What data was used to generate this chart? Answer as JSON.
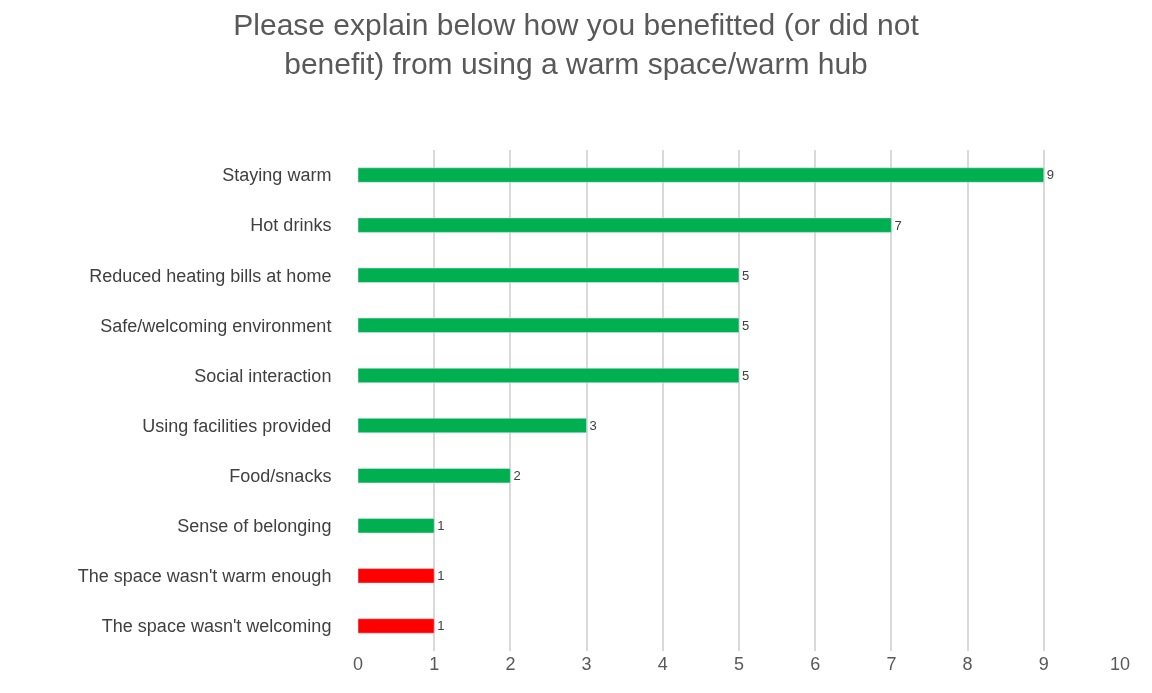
{
  "chart_data": {
    "type": "bar",
    "orientation": "horizontal",
    "title": "Please explain below how you benefitted (or did not benefit) from using a warm space/warm hub",
    "categories": [
      "Staying warm",
      "Hot drinks",
      "Reduced heating bills at home",
      "Safe/welcoming environment",
      "Social interaction",
      "Using facilities provided",
      "Food/snacks",
      "Sense of belonging",
      "The space wasn't warm enough",
      "The space wasn't welcoming"
    ],
    "values": [
      9,
      7,
      5,
      5,
      5,
      3,
      2,
      1,
      1,
      1
    ],
    "colors": [
      "#00b050",
      "#00b050",
      "#00b050",
      "#00b050",
      "#00b050",
      "#00b050",
      "#00b050",
      "#00b050",
      "#ff0000",
      "#ff0000"
    ],
    "xlim": [
      0,
      10
    ],
    "xticks": [
      0,
      1,
      2,
      3,
      4,
      5,
      6,
      7,
      8,
      9,
      10
    ],
    "grid": "x",
    "data_labels": true
  }
}
